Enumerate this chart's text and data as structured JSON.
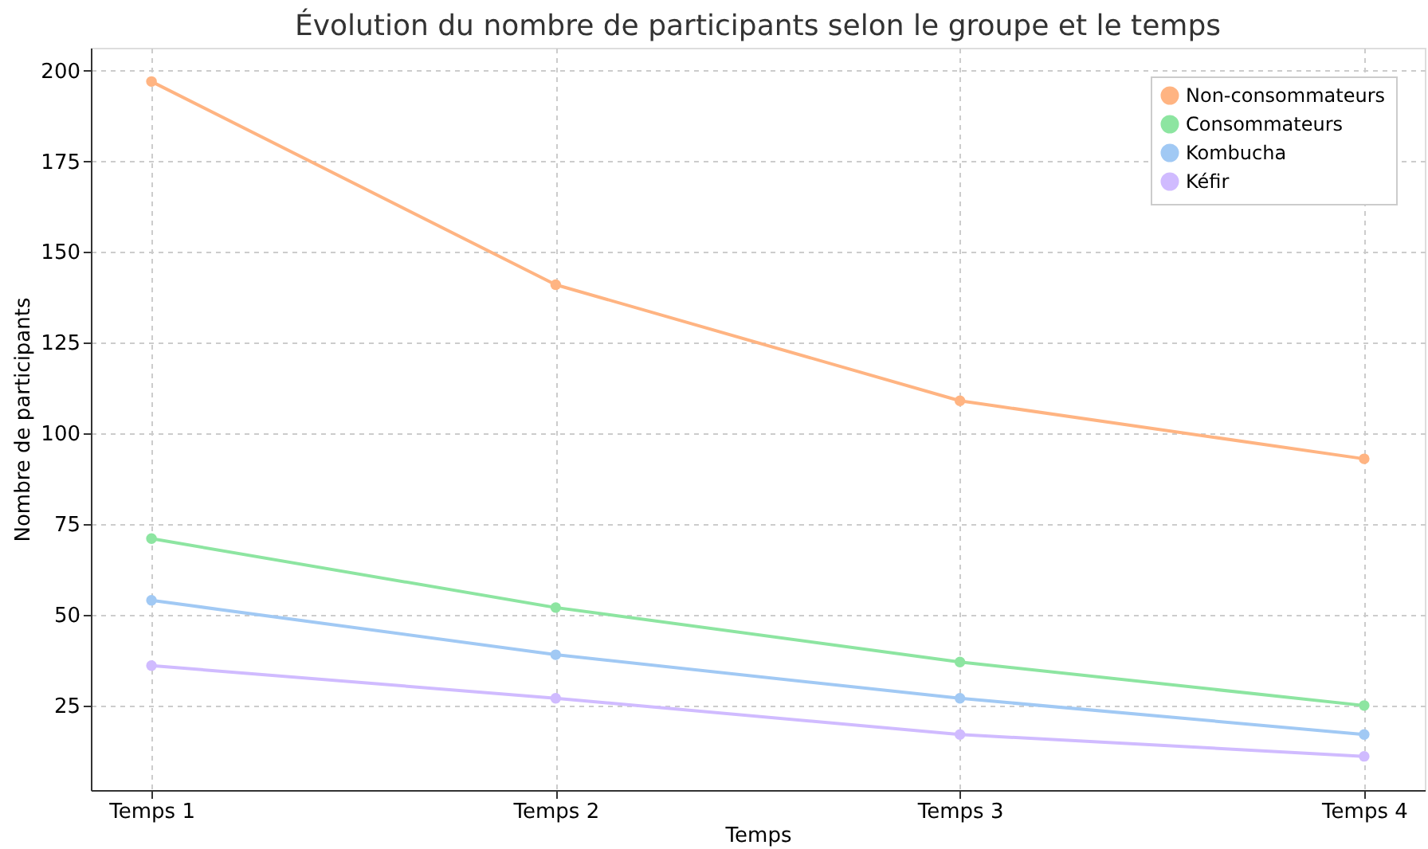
{
  "chart_data": {
    "type": "line",
    "title": "Évolution du nombre de participants selon le groupe et le temps",
    "xlabel": "Temps",
    "ylabel": "Nombre de participants",
    "categories": [
      "Temps 1",
      "Temps 2",
      "Temps 3",
      "Temps 4"
    ],
    "series": [
      {
        "name": "Non-consommateurs",
        "color": "#ffb482",
        "values": [
          197,
          141,
          109,
          93
        ]
      },
      {
        "name": "Consommateurs",
        "color": "#8de5a1",
        "values": [
          71,
          52,
          37,
          25
        ]
      },
      {
        "name": "Kombucha",
        "color": "#a1c9f4",
        "values": [
          54,
          39,
          27,
          17
        ]
      },
      {
        "name": "Kéfir",
        "color": "#d0bbff",
        "values": [
          36,
          27,
          17,
          11
        ]
      }
    ],
    "ylim": [
      1.7,
      206.3
    ],
    "yticks": [
      25,
      50,
      75,
      100,
      125,
      150,
      175,
      200
    ],
    "grid": true,
    "legend": "top right",
    "marker": "circle",
    "line_style": "solid"
  }
}
